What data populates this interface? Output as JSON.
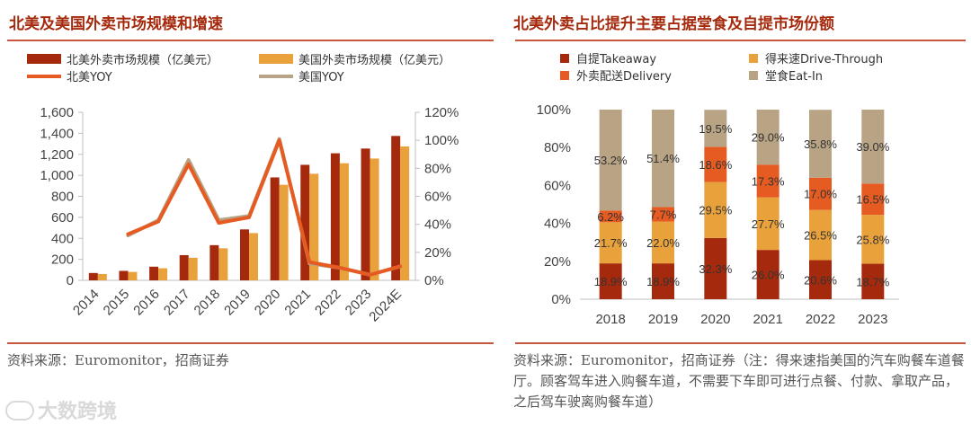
{
  "left": {
    "title": "北美及美国外卖市场规模和增速",
    "source": "资料来源：Euromonitor，招商证券",
    "chart_data": {
      "type": "bar",
      "categories": [
        "2014",
        "2015",
        "2016",
        "2017",
        "2018",
        "2019",
        "2020",
        "2021",
        "2022",
        "2023",
        "2024E"
      ],
      "series": [
        {
          "name": "北美外卖市场规模（亿美元）",
          "kind": "bar",
          "axis": "left",
          "color": "#a52a0d",
          "values": [
            70,
            90,
            130,
            240,
            335,
            485,
            980,
            1100,
            1210,
            1255,
            1375
          ]
        },
        {
          "name": "美国外卖市场规模（亿美元）",
          "kind": "bar",
          "axis": "left",
          "color": "#e9a23b",
          "values": [
            60,
            80,
            115,
            215,
            305,
            450,
            910,
            1015,
            1115,
            1160,
            1275
          ]
        },
        {
          "name": "北美YOY",
          "kind": "line",
          "axis": "right",
          "color": "#e55b22",
          "values": [
            null,
            33,
            42,
            83,
            41,
            45,
            100,
            13,
            9,
            4,
            10
          ]
        },
        {
          "name": "美国YOY",
          "kind": "line",
          "axis": "right",
          "color": "#b8a385",
          "values": [
            null,
            32,
            43,
            86,
            43,
            46,
            101,
            12,
            9,
            4,
            10
          ]
        }
      ],
      "yleft": {
        "min": 0,
        "max": 1600,
        "ticks": [
          "0",
          "200",
          "400",
          "600",
          "800",
          "1,000",
          "1,200",
          "1,400",
          "1,600"
        ]
      },
      "yright": {
        "min": 0,
        "max": 120,
        "ticks": [
          "0%",
          "20%",
          "40%",
          "60%",
          "80%",
          "100%",
          "120%"
        ]
      },
      "legend": "top",
      "grid": false
    }
  },
  "right": {
    "title": "北美外卖占比提升主要占据堂食及自提市场份额",
    "source": "资料来源：Euromonitor，招商证券（注：得来速指美国的汽车购餐车道餐厅。顾客驾车进入购餐车道，不需要下车即可进行点餐、付款、拿取产品，之后驾车驶离购餐车道）",
    "chart_data": {
      "type": "bar",
      "stacked": true,
      "categories": [
        "2018",
        "2019",
        "2020",
        "2021",
        "2022",
        "2023"
      ],
      "series": [
        {
          "name": "自提Takeaway",
          "color": "#a52a0d",
          "values": [
            18.9,
            18.9,
            32.3,
            26.0,
            20.6,
            18.7
          ]
        },
        {
          "name": "得来速Drive-Through",
          "color": "#e9a23b",
          "values": [
            21.7,
            22.0,
            29.5,
            27.7,
            26.5,
            25.8
          ]
        },
        {
          "name": "外卖配送Delivery",
          "color": "#e55b22",
          "values": [
            6.2,
            7.7,
            18.6,
            17.3,
            17.0,
            16.5
          ]
        },
        {
          "name": "堂食Eat-In",
          "color": "#b8a385",
          "values": [
            53.2,
            51.4,
            19.5,
            29.0,
            35.8,
            39.0
          ]
        }
      ],
      "labels": [
        [
          "18.9%",
          "18.9%",
          "32.3%",
          "26.0%",
          "20.6%",
          "18.7%"
        ],
        [
          "21.7%",
          "22.0%",
          "29.5%",
          "27.7%",
          "26.5%",
          "25.8%"
        ],
        [
          "6.2%",
          "7.7%",
          "18.6%",
          "17.3%",
          "17.0%",
          "16.5%"
        ],
        [
          "53.2%",
          "51.4%",
          "19.5%",
          "29.0%",
          "35.8%",
          "39.0%"
        ]
      ],
      "y": {
        "min": 0,
        "max": 100,
        "ticks": [
          "0%",
          "20%",
          "40%",
          "60%",
          "80%",
          "100%"
        ]
      },
      "legend": "top",
      "grid": false
    }
  },
  "watermark": "大数跨境"
}
